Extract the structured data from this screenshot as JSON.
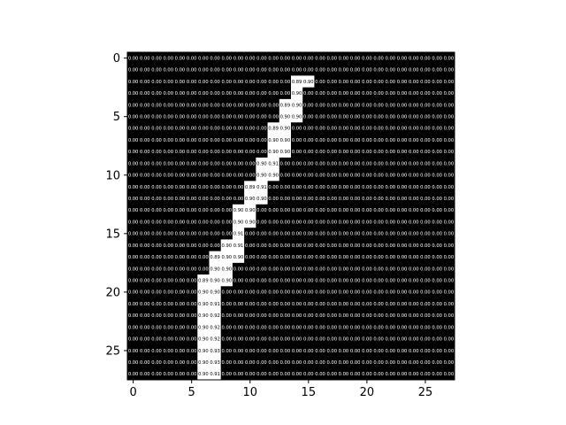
{
  "chart_data": {
    "type": "heatmap",
    "title": "",
    "xlabel": "",
    "ylabel": "",
    "colormap": "gray",
    "grid": false,
    "xlim": [
      -0.5,
      27.5
    ],
    "ylim": [
      27.5,
      -0.5
    ],
    "x_ticks": [
      "0",
      "5",
      "10",
      "15",
      "20",
      "25"
    ],
    "y_ticks": [
      "0",
      "5",
      "10",
      "15",
      "20",
      "25"
    ],
    "rows": 28,
    "cols": 28,
    "background_value": "0.00",
    "nonzero_cells": [
      {
        "row": 2,
        "col": 14,
        "label": "0.89"
      },
      {
        "row": 2,
        "col": 15,
        "label": "0.90"
      },
      {
        "row": 3,
        "col": 14,
        "label": "0.90"
      },
      {
        "row": 4,
        "col": 13,
        "label": "0.89"
      },
      {
        "row": 4,
        "col": 14,
        "label": "0.90"
      },
      {
        "row": 5,
        "col": 13,
        "label": "0.90"
      },
      {
        "row": 5,
        "col": 14,
        "label": "0.90"
      },
      {
        "row": 6,
        "col": 12,
        "label": "0.89"
      },
      {
        "row": 6,
        "col": 13,
        "label": "0.90"
      },
      {
        "row": 7,
        "col": 12,
        "label": "0.90"
      },
      {
        "row": 7,
        "col": 13,
        "label": "0.90"
      },
      {
        "row": 8,
        "col": 12,
        "label": "0.90"
      },
      {
        "row": 8,
        "col": 13,
        "label": "0.90"
      },
      {
        "row": 9,
        "col": 11,
        "label": "0.90"
      },
      {
        "row": 9,
        "col": 12,
        "label": "0.91"
      },
      {
        "row": 10,
        "col": 11,
        "label": "0.90"
      },
      {
        "row": 10,
        "col": 12,
        "label": "0.90"
      },
      {
        "row": 11,
        "col": 10,
        "label": "0.89"
      },
      {
        "row": 11,
        "col": 11,
        "label": "0.91"
      },
      {
        "row": 12,
        "col": 10,
        "label": "0.90"
      },
      {
        "row": 12,
        "col": 11,
        "label": "0.90"
      },
      {
        "row": 13,
        "col": 9,
        "label": "0.90"
      },
      {
        "row": 13,
        "col": 10,
        "label": "0.90"
      },
      {
        "row": 14,
        "col": 9,
        "label": "0.90"
      },
      {
        "row": 14,
        "col": 10,
        "label": "0.90"
      },
      {
        "row": 15,
        "col": 9,
        "label": "0.91"
      },
      {
        "row": 16,
        "col": 8,
        "label": "0.90"
      },
      {
        "row": 16,
        "col": 9,
        "label": "0.91"
      },
      {
        "row": 17,
        "col": 7,
        "label": "0.89"
      },
      {
        "row": 17,
        "col": 8,
        "label": "0.90"
      },
      {
        "row": 17,
        "col": 9,
        "label": "0.90"
      },
      {
        "row": 18,
        "col": 7,
        "label": "0.90"
      },
      {
        "row": 18,
        "col": 8,
        "label": "0.90"
      },
      {
        "row": 19,
        "col": 6,
        "label": "0.89"
      },
      {
        "row": 19,
        "col": 7,
        "label": "0.90"
      },
      {
        "row": 19,
        "col": 8,
        "label": "0.90"
      },
      {
        "row": 20,
        "col": 6,
        "label": "0.90"
      },
      {
        "row": 20,
        "col": 7,
        "label": "0.90"
      },
      {
        "row": 21,
        "col": 6,
        "label": "0.90"
      },
      {
        "row": 21,
        "col": 7,
        "label": "0.91"
      },
      {
        "row": 22,
        "col": 6,
        "label": "0.90"
      },
      {
        "row": 22,
        "col": 7,
        "label": "0.92"
      },
      {
        "row": 23,
        "col": 6,
        "label": "0.90"
      },
      {
        "row": 23,
        "col": 7,
        "label": "0.92"
      },
      {
        "row": 24,
        "col": 6,
        "label": "0.90"
      },
      {
        "row": 24,
        "col": 7,
        "label": "0.92"
      },
      {
        "row": 25,
        "col": 6,
        "label": "0.90"
      },
      {
        "row": 25,
        "col": 7,
        "label": "0.93"
      },
      {
        "row": 26,
        "col": 6,
        "label": "0.90"
      },
      {
        "row": 26,
        "col": 7,
        "label": "0.93"
      },
      {
        "row": 27,
        "col": 6,
        "label": "0.90"
      },
      {
        "row": 27,
        "col": 7,
        "label": "0.91"
      }
    ]
  }
}
